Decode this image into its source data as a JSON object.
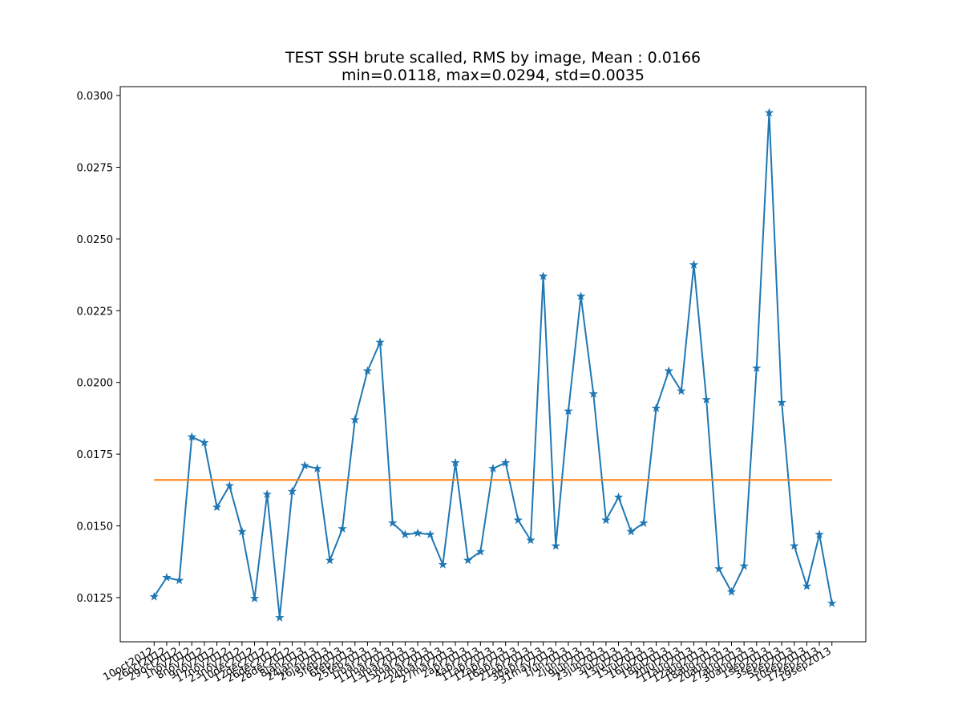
{
  "chart_data": {
    "type": "line",
    "title": "TEST SSH brute scalled, RMS by image, Mean : 0.0166",
    "subtitle": "min=0.0118, max=0.0294, std=0.0035",
    "categories": [
      "10oct2012",
      "26oct2012",
      "29oct2012",
      "1nov2012",
      "8nov2012",
      "9nov2012",
      "17nov2012",
      "23nov2012",
      "10dec2012",
      "12dec2012",
      "26dec2012",
      "28dec2012",
      "8jan2013",
      "24jan2013",
      "26jan2013",
      "5feb2013",
      "6feb2013",
      "25feb2013",
      "1mar2013",
      "11mar2013",
      "13mar2013",
      "15mar2013",
      "22mar2013",
      "24mar2013",
      "27mar2013",
      "2apr2013",
      "4apr2013",
      "11apr2013",
      "12apr2013",
      "16apr2013",
      "21apr2013",
      "30apr2013",
      "31may2013",
      "1jun2013",
      "2jun2013",
      "9jun2013",
      "23jun2013",
      "3jul2013",
      "13jul2013",
      "15jul2013",
      "16jul2013",
      "18jul2013",
      "20jul2013",
      "11aug2013",
      "12aug2013",
      "18aug2013",
      "20aug2013",
      "27aug2013",
      "30aug2013",
      "1sep2013",
      "3sep2013",
      "5sep2013",
      "10sep2013",
      "17sep2013",
      "19sep2013"
    ],
    "series": [
      {
        "color": "#1f77b4",
        "marker": "star",
        "values": [
          0.01253,
          0.0132,
          0.0131,
          0.0181,
          0.0179,
          0.01565,
          0.0164,
          0.0148,
          0.01247,
          0.0161,
          0.0118,
          0.0162,
          0.0171,
          0.017,
          0.0138,
          0.0149,
          0.0187,
          0.0204,
          0.0214,
          0.0151,
          0.0147,
          0.01475,
          0.0147,
          0.01365,
          0.0172,
          0.0138,
          0.0141,
          0.017,
          0.0172,
          0.0152,
          0.0145,
          0.0237,
          0.0143,
          0.019,
          0.023,
          0.0196,
          0.0152,
          0.016,
          0.0148,
          0.0151,
          0.0191,
          0.0204,
          0.0197,
          0.0241,
          0.0194,
          0.0135,
          0.0127,
          0.0136,
          0.0205,
          0.0294,
          0.0193,
          0.0143,
          0.0129,
          0.0147,
          0.0123
        ]
      },
      {
        "color": "#ff7f0e",
        "values": [
          0.0166,
          0.0166,
          0.0166,
          0.0166,
          0.0166,
          0.0166,
          0.0166,
          0.0166,
          0.0166,
          0.0166,
          0.0166,
          0.0166,
          0.0166,
          0.0166,
          0.0166,
          0.0166,
          0.0166,
          0.0166,
          0.0166,
          0.0166,
          0.0166,
          0.0166,
          0.0166,
          0.0166,
          0.0166,
          0.0166,
          0.0166,
          0.0166,
          0.0166,
          0.0166,
          0.0166,
          0.0166,
          0.0166,
          0.0166,
          0.0166,
          0.0166,
          0.0166,
          0.0166,
          0.0166,
          0.0166,
          0.0166,
          0.0166,
          0.0166,
          0.0166,
          0.0166,
          0.0166,
          0.0166,
          0.0166,
          0.0166,
          0.0166,
          0.0166,
          0.0166,
          0.0166,
          0.0166,
          0.0166
        ]
      }
    ],
    "ylim": [
      0.01096,
      0.03031
    ],
    "yticks": [
      0.0125,
      {
        "value": 0.015,
        "label": "0.0150"
      },
      0.0175,
      {
        "value": 0.02,
        "label": "0.0200"
      },
      0.0225,
      {
        "value": 0.025,
        "label": "0.0250"
      },
      0.0275,
      {
        "value": 0.03,
        "label": "0.0300"
      }
    ],
    "grid": false
  }
}
